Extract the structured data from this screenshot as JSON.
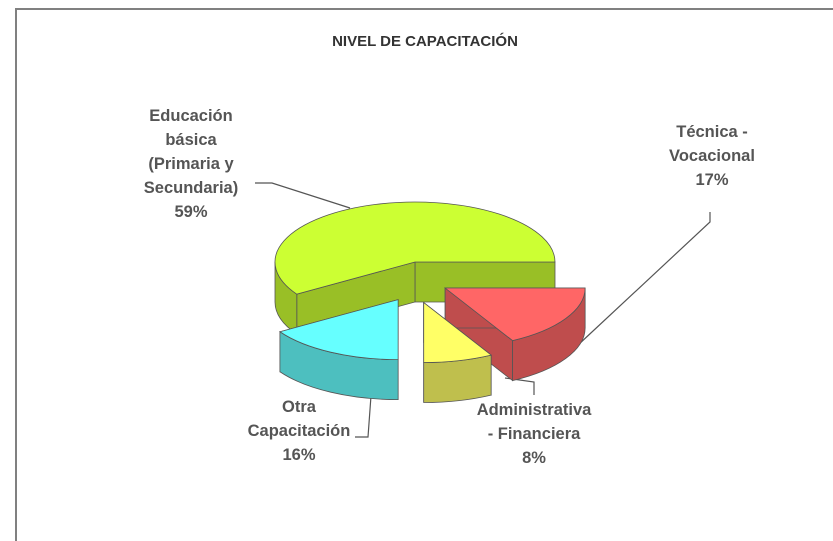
{
  "chart_data": {
    "type": "pie",
    "title": "NIVEL DE CAPACITACIÓN",
    "categories": [
      "Educación básica (Primaria y Secundaria)",
      "Otra Capacitación",
      "Administrativa - Financiera",
      "Técnica - Vocacional"
    ],
    "values": [
      59,
      16,
      8,
      17
    ],
    "value_labels": [
      "59%",
      "16%",
      "8%",
      "17%"
    ],
    "colors": [
      "#ccff33",
      "#66ffff",
      "#ffff66",
      "#ff6666"
    ]
  }
}
